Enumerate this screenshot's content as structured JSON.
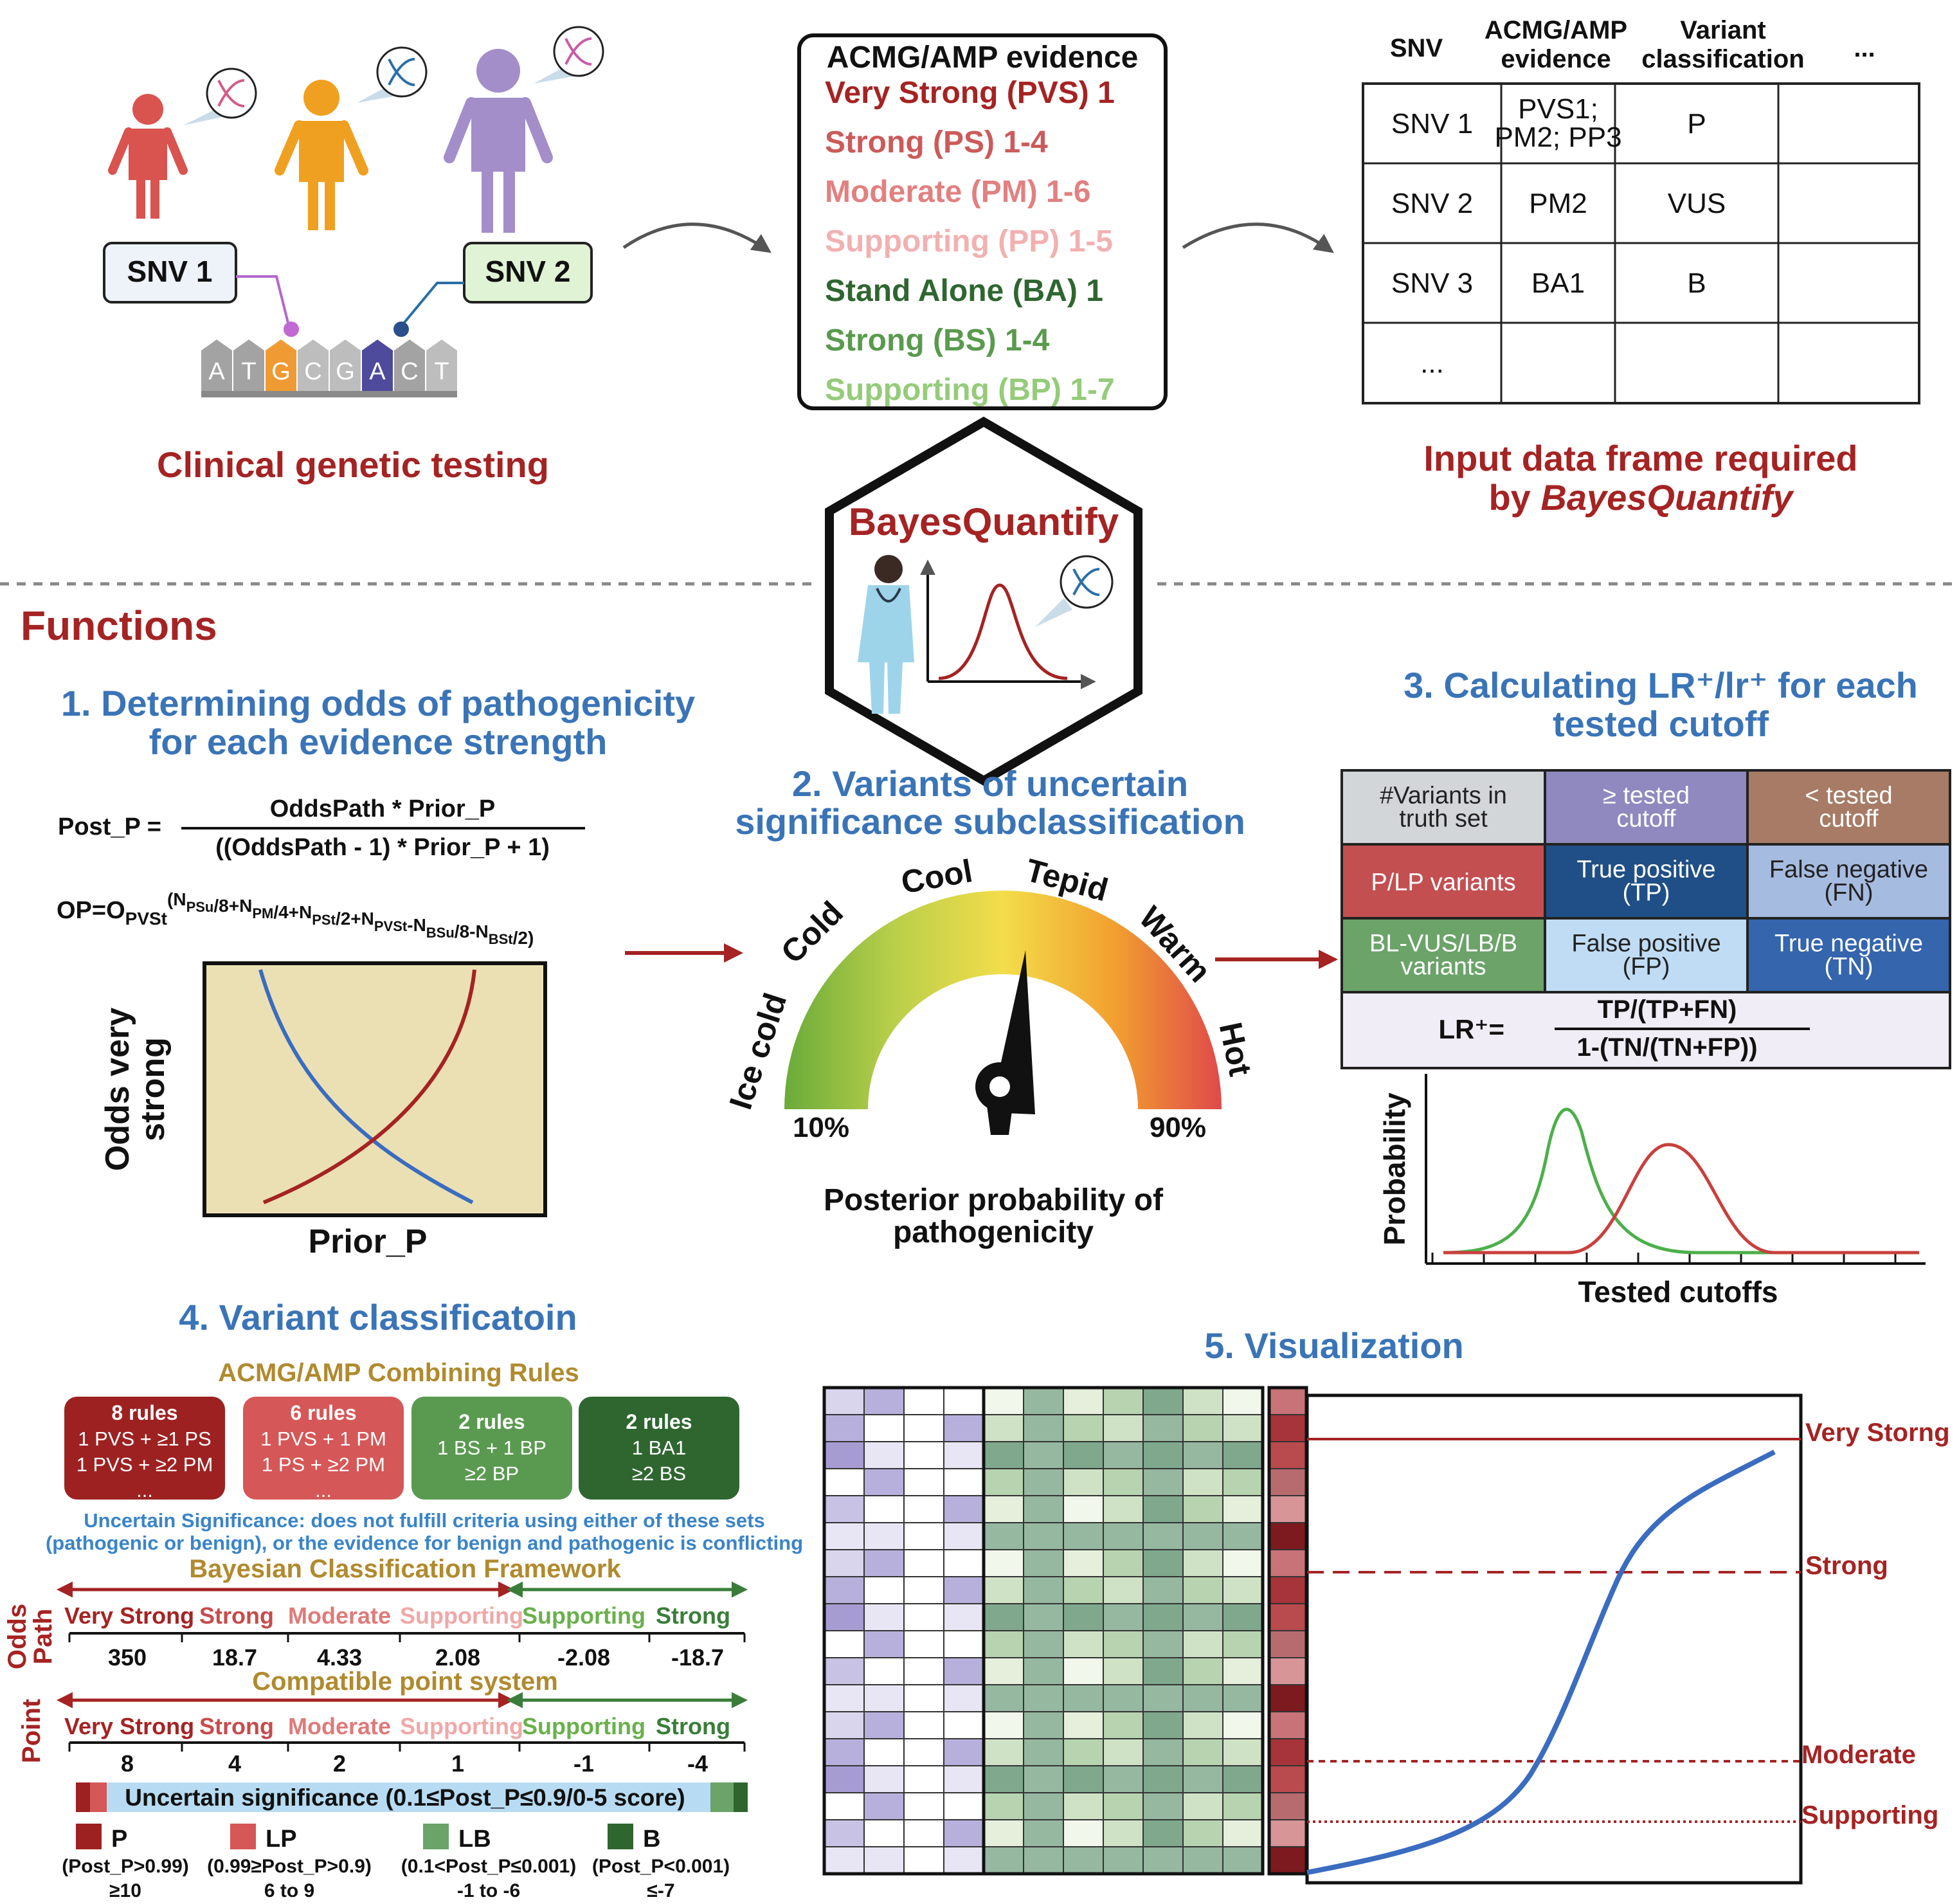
{
  "top": {
    "snv1": "SNV 1",
    "snv2": "SNV 2",
    "bases": [
      "A",
      "T",
      "G",
      "C",
      "G",
      "A",
      "C",
      "T"
    ],
    "clinical_label": "Clinical genetic testing",
    "evidence": {
      "title": "ACMG/AMP evidence",
      "items": [
        {
          "text": "Very Strong (PVS) 1",
          "color": "#a52323"
        },
        {
          "text": "Strong (PS) 1-4",
          "color": "#cc5a5a"
        },
        {
          "text": "Moderate (PM) 1-6",
          "color": "#e28080"
        },
        {
          "text": "Supporting (PP) 1-5",
          "color": "#f2b1b1"
        },
        {
          "text": "Stand Alone (BA) 1",
          "color": "#2f6630"
        },
        {
          "text": "Strong (BS) 1-4",
          "color": "#5a9a4e"
        },
        {
          "text": "Supporting (BP) 1-7",
          "color": "#95cb7a"
        }
      ]
    },
    "table": {
      "headers": [
        "SNV",
        "ACMG/AMP evidence",
        "Variant classification",
        "..."
      ],
      "rows": [
        [
          "SNV 1",
          "PVS1; PM2; PP3",
          "P",
          ""
        ],
        [
          "SNV 2",
          "PM2",
          "VUS",
          ""
        ],
        [
          "SNV 3",
          "BA1",
          "B",
          ""
        ],
        [
          "...",
          "",
          "",
          ""
        ]
      ]
    },
    "input_label_1": "Input data frame required",
    "input_label_2": "by ",
    "input_label_3": "BayesQuantify",
    "hex_title": "BayesQuantify"
  },
  "functions_title": "Functions",
  "f1": {
    "title_1": "1. Determining odds of pathogenicity",
    "title_2": "for each evidence strength",
    "formula_left": "Post_P =",
    "formula_num": "OddsPath * Prior_P",
    "formula_den": "((OddsPath - 1) * Prior_P + 1)",
    "op_formula": "OP=O_PVSt^(N_PSu/8+N_PM/4+N_PSt/2+N_PVSt-N_BSu/8-N_BSt/2)",
    "ylabel_1": "Odds very",
    "ylabel_2": "strong",
    "xlabel": "Prior_P"
  },
  "f2": {
    "title_1": "2. Variants of uncertain",
    "title_2": "significance subclassification",
    "gauge_labels": [
      "Ice cold",
      "Cold",
      "Cool",
      "Tepid",
      "Warm",
      "Hot"
    ],
    "left_pct": "10%",
    "right_pct": "90%",
    "caption_1": "Posterior probability of",
    "caption_2": "pathogenicity"
  },
  "f3": {
    "title_1": "3. Calculating LR⁺/lr⁺ for each",
    "title_2": "tested cutoff",
    "cells": [
      [
        {
          "t": [
            "#Variants in",
            "truth set"
          ],
          "bg": "#d3d6d9",
          "fg": "#222"
        },
        {
          "t": [
            "≥ tested",
            "cutoff"
          ],
          "bg": "#8f89c0",
          "fg": "#fff"
        },
        {
          "t": [
            "< tested",
            "cutoff"
          ],
          "bg": "#a77b66",
          "fg": "#fff"
        }
      ],
      [
        {
          "t": [
            "P/LP variants"
          ],
          "bg": "#c34f51",
          "fg": "#fff"
        },
        {
          "t": [
            "True positive",
            "(TP)"
          ],
          "bg": "#1f4f86",
          "fg": "#fff"
        },
        {
          "t": [
            "False negative",
            "(FN)"
          ],
          "bg": "#a6bbe0",
          "fg": "#222"
        }
      ],
      [
        {
          "t": [
            "BL-VUS/LB/B",
            "variants"
          ],
          "bg": "#6ba369",
          "fg": "#fff"
        },
        {
          "t": [
            "False positive",
            "(FP)"
          ],
          "bg": "#bfdcf4",
          "fg": "#222"
        },
        {
          "t": [
            "True negative",
            "(TN)"
          ],
          "bg": "#3465ad",
          "fg": "#fff"
        }
      ]
    ],
    "lr_label": "LR⁺=",
    "lr_num": "TP/(TP+FN)",
    "lr_den": "1-(TN/(TN+FP))",
    "ylabel": "Probability",
    "xlabel": "Tested cutoffs"
  },
  "f4": {
    "title": "4. Variant classificatoin",
    "combining_title": "ACMG/AMP Combining Rules",
    "rule_boxes": [
      {
        "lines": [
          "8 rules",
          "1 PVS + ≥1 PS",
          "1 PVS + ≥2 PM",
          "..."
        ],
        "color": "#9e2121"
      },
      {
        "lines": [
          "6 rules",
          "1 PVS + 1 PM",
          "1 PS + ≥2 PM",
          "..."
        ],
        "color": "#d65757"
      },
      {
        "lines": [
          "2 rules",
          "1 BS + 1 BP",
          "≥2 BP"
        ],
        "color": "#5a9a50"
      },
      {
        "lines": [
          "2 rules",
          "1 BA1",
          "≥2 BS"
        ],
        "color": "#2f6630"
      }
    ],
    "uncertain_1": "Uncertain Significance: does not fulfill criteria using either of these sets",
    "uncertain_2": "(pathogenic or benign), or the evidence for benign and pathogenic is conflicting",
    "bayes_title": "Bayesian Classification Framework",
    "odds_side_1": "Odds",
    "odds_side_2": "Path",
    "point_side": "Point",
    "strength_labels": [
      {
        "t": "Very Strong",
        "c": "#a52323"
      },
      {
        "t": "Strong",
        "c": "#c84b4b"
      },
      {
        "t": "Moderate",
        "c": "#e07a7a"
      },
      {
        "t": "Supporting",
        "c": "#f0a8a8"
      },
      {
        "t": "Supporting",
        "c": "#6ab04c"
      },
      {
        "t": "Strong",
        "c": "#3a7d3a"
      }
    ],
    "odds_values": [
      "350",
      "18.7",
      "4.33",
      "2.08",
      "-2.08",
      "-18.7"
    ],
    "point_title": "Compatible point system",
    "point_values": [
      "8",
      "4",
      "2",
      "1",
      "-1",
      "-4"
    ],
    "uncertain_bar": "Uncertain significance (0.1≤Post_P≤0.9/0-5 score)",
    "legend": [
      {
        "code": "P",
        "l1": "(Post_P>0.99)",
        "l2": "≥10",
        "color": "#9e2121"
      },
      {
        "code": "LP",
        "l1": "(0.99≥Post_P>0.9)",
        "l2": "6 to 9",
        "color": "#d65757"
      },
      {
        "code": "LB",
        "l1": "(0.1<Post_P≤0.001)",
        "l2": "-1 to -6",
        "color": "#6ba369"
      },
      {
        "code": "B",
        "l1": "(Post_P<0.001)",
        "l2": "≤-7",
        "color": "#2f6630"
      }
    ]
  },
  "f5": {
    "title": "5. Visualization",
    "levels": [
      "Very Storng",
      "Strong",
      "Moderate",
      "Supporting"
    ]
  }
}
